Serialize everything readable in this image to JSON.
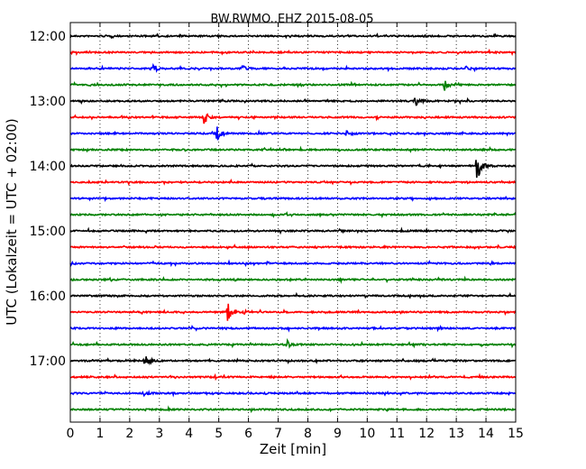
{
  "chart_data": {
    "type": "line",
    "title": "BW.RWMO..EHZ 2015-08-05",
    "xlabel": "Zeit  [min]",
    "ylabel": "UTC (Lokalzeit = UTC + 02:00)",
    "xlim": [
      0,
      15
    ],
    "xticks": [
      "0",
      "1",
      "2",
      "3",
      "4",
      "5",
      "6",
      "7",
      "8",
      "9",
      "10",
      "11",
      "12",
      "13",
      "14",
      "15"
    ],
    "yticks": [
      "12:00",
      "13:00",
      "14:00",
      "15:00",
      "16:00",
      "17:00"
    ],
    "grid": "dotted",
    "row_start_minutes": [
      720,
      735,
      750,
      765,
      780,
      795,
      810,
      825,
      840,
      855,
      870,
      885,
      900,
      915,
      930,
      945,
      960,
      975,
      990,
      1005,
      1020,
      1035,
      1050,
      1065
    ],
    "trace_colors": [
      "#000000",
      "#ff0000",
      "#0000ff",
      "#008000"
    ],
    "events": [
      {
        "row": 2,
        "time_min": 2.8,
        "amplitude": 0.25
      },
      {
        "row": 2,
        "time_min": 5.8,
        "amplitude": 0.15
      },
      {
        "row": 2,
        "time_min": 13.3,
        "amplitude": 0.2
      },
      {
        "row": 3,
        "time_min": 12.6,
        "amplitude": 0.35
      },
      {
        "row": 4,
        "time_min": 11.6,
        "amplitude": 0.4
      },
      {
        "row": 5,
        "time_min": 4.5,
        "amplitude": 0.45
      },
      {
        "row": 6,
        "time_min": 4.9,
        "amplitude": 0.85
      },
      {
        "row": 6,
        "time_min": 9.3,
        "amplitude": 0.25
      },
      {
        "row": 8,
        "time_min": 13.7,
        "amplitude": 1.2
      },
      {
        "row": 17,
        "time_min": 5.3,
        "amplitude": 0.65
      },
      {
        "row": 17,
        "time_min": 5.8,
        "amplitude": 0.15
      },
      {
        "row": 19,
        "time_min": 7.3,
        "amplitude": 0.25
      },
      {
        "row": 20,
        "time_min": 2.5,
        "amplitude": 0.45
      },
      {
        "row": 22,
        "time_min": 2.5,
        "amplitude": 0.12
      }
    ]
  }
}
